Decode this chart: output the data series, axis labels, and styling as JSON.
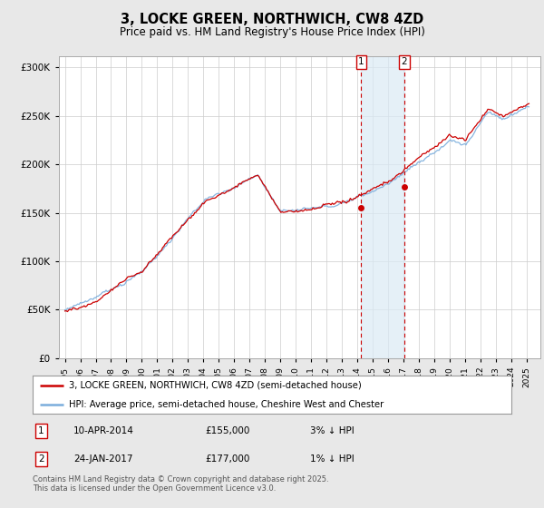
{
  "title": "3, LOCKE GREEN, NORTHWICH, CW8 4ZD",
  "subtitle": "Price paid vs. HM Land Registry's House Price Index (HPI)",
  "yticks": [
    0,
    50000,
    100000,
    150000,
    200000,
    250000,
    300000
  ],
  "ylim": [
    0,
    312000
  ],
  "xlim": [
    1994.6,
    2025.9
  ],
  "legend_line1": "3, LOCKE GREEN, NORTHWICH, CW8 4ZD (semi-detached house)",
  "legend_line2": "HPI: Average price, semi-detached house, Cheshire West and Chester",
  "sale1_date": "10-APR-2014",
  "sale1_price": "£155,000",
  "sale1_hpi": "3% ↓ HPI",
  "sale2_date": "24-JAN-2017",
  "sale2_price": "£177,000",
  "sale2_hpi": "1% ↓ HPI",
  "footnote": "Contains HM Land Registry data © Crown copyright and database right 2025.\nThis data is licensed under the Open Government Licence v3.0.",
  "sale1_x": 2014.27,
  "sale1_y": 155000,
  "sale2_x": 2017.07,
  "sale2_y": 177000,
  "hpi_color": "#7aaddc",
  "price_color": "#cc0000",
  "vline_color": "#cc0000",
  "band_color": "#daeaf5",
  "background_color": "#e8e8e8",
  "plot_bg_color": "#ffffff",
  "grid_color": "#cccccc"
}
